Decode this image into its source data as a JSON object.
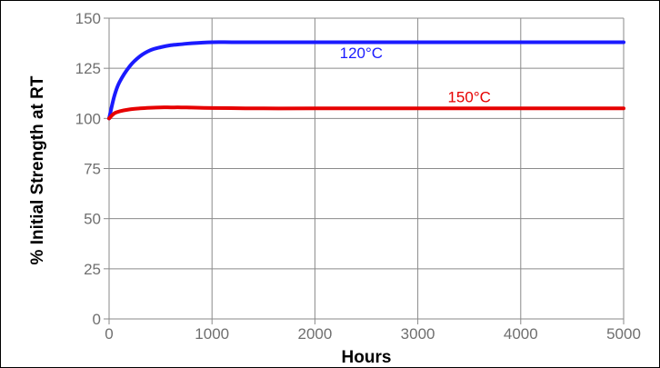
{
  "chart_data": {
    "type": "line",
    "title": "",
    "xlabel": "Hours",
    "ylabel": "% Initial Strength at RT",
    "xlim": [
      0,
      5000
    ],
    "ylim": [
      0,
      150
    ],
    "x_ticks": [
      0,
      1000,
      2000,
      3000,
      4000,
      5000
    ],
    "y_ticks": [
      0,
      25,
      50,
      75,
      100,
      125,
      150
    ],
    "grid": true,
    "legend": "none",
    "series": [
      {
        "name": "120°C",
        "color": "#1a1aff",
        "x": [
          0,
          50,
          100,
          200,
          300,
          400,
          500,
          600,
          700,
          800,
          1000,
          1200,
          1500,
          2000,
          3000,
          4000,
          5000
        ],
        "y": [
          100,
          111,
          118,
          126,
          131,
          134,
          135.5,
          136.5,
          137,
          137.5,
          138,
          138,
          138,
          138,
          138,
          138,
          138
        ]
      },
      {
        "name": "150°C",
        "color": "#e60000",
        "x": [
          0,
          50,
          100,
          200,
          300,
          400,
          500,
          600,
          700,
          800,
          1000,
          1500,
          2000,
          3000,
          4000,
          5000
        ],
        "y": [
          100,
          102.5,
          103.5,
          104.5,
          105,
          105.3,
          105.5,
          105.5,
          105.5,
          105.4,
          105.2,
          105,
          105,
          105,
          105,
          105
        ]
      }
    ],
    "annotations": [
      {
        "text": "120°C",
        "x": 2450,
        "y": 130,
        "color": "#1a1aff"
      },
      {
        "text": "150°C",
        "x": 3500,
        "y": 108,
        "color": "#e60000"
      }
    ]
  }
}
